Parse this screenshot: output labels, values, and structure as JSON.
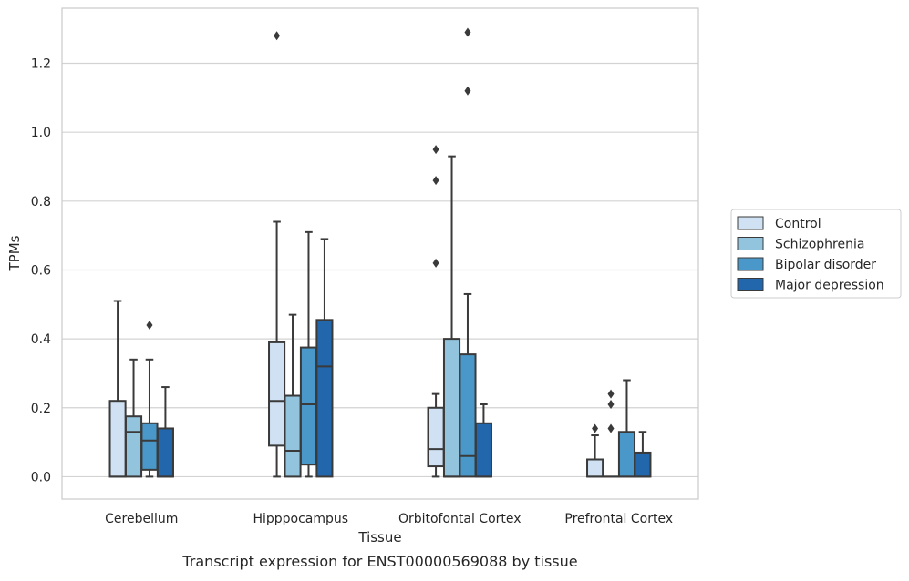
{
  "chart_data": {
    "type": "box",
    "title": "",
    "caption": "Transcript expression for ENST00000569088 by tissue",
    "xlabel": "Tissue",
    "ylabel": "TPMs",
    "ylim": [
      -0.065,
      1.36
    ],
    "yticks": [
      0.0,
      0.2,
      0.4,
      0.6,
      0.8,
      1.0,
      1.2
    ],
    "ytick_labels": [
      "0.0",
      "0.2",
      "0.4",
      "0.6",
      "0.8",
      "1.0",
      "1.2"
    ],
    "grid": "horizontal",
    "legend_position": "right",
    "categories": [
      "Cerebellum",
      "Hipppocampus",
      "Orbitofontal Cortex",
      "Prefrontal Cortex"
    ],
    "series": [
      {
        "name": "Control",
        "color": "#cfe1f2",
        "boxes": [
          {
            "whislo": 0.0,
            "q1": 0.0,
            "med": 0.0,
            "q3": 0.22,
            "whishi": 0.51,
            "fliers": []
          },
          {
            "whislo": 0.0,
            "q1": 0.09,
            "med": 0.22,
            "q3": 0.39,
            "whishi": 0.74,
            "fliers": [
              1.28
            ]
          },
          {
            "whislo": 0.0,
            "q1": 0.03,
            "med": 0.08,
            "q3": 0.2,
            "whishi": 0.24,
            "fliers": [
              0.62,
              0.86,
              0.95
            ]
          },
          {
            "whislo": 0.0,
            "q1": 0.0,
            "med": 0.0,
            "q3": 0.05,
            "whishi": 0.12,
            "fliers": [
              0.14
            ]
          }
        ]
      },
      {
        "name": "Schizophrenia",
        "color": "#93c4de",
        "boxes": [
          {
            "whislo": 0.0,
            "q1": 0.0,
            "med": 0.13,
            "q3": 0.175,
            "whishi": 0.34,
            "fliers": []
          },
          {
            "whislo": 0.0,
            "q1": 0.0,
            "med": 0.075,
            "q3": 0.235,
            "whishi": 0.47,
            "fliers": []
          },
          {
            "whislo": 0.0,
            "q1": 0.0,
            "med": 0.0,
            "q3": 0.4,
            "whishi": 0.93,
            "fliers": []
          },
          {
            "whislo": 0.0,
            "q1": 0.0,
            "med": 0.0,
            "q3": 0.0,
            "whishi": 0.0,
            "fliers": [
              0.14,
              0.21,
              0.24
            ]
          }
        ]
      },
      {
        "name": "Bipolar disorder",
        "color": "#4a98c9",
        "boxes": [
          {
            "whislo": 0.0,
            "q1": 0.02,
            "med": 0.105,
            "q3": 0.155,
            "whishi": 0.34,
            "fliers": [
              0.44
            ]
          },
          {
            "whislo": 0.0,
            "q1": 0.035,
            "med": 0.21,
            "q3": 0.375,
            "whishi": 0.71,
            "fliers": []
          },
          {
            "whislo": 0.0,
            "q1": 0.0,
            "med": 0.06,
            "q3": 0.355,
            "whishi": 0.53,
            "fliers": [
              1.12,
              1.29
            ]
          },
          {
            "whislo": 0.0,
            "q1": 0.0,
            "med": 0.0,
            "q3": 0.13,
            "whishi": 0.28,
            "fliers": []
          }
        ]
      },
      {
        "name": "Major depression",
        "color": "#2266ac",
        "boxes": [
          {
            "whislo": 0.0,
            "q1": 0.0,
            "med": 0.0,
            "q3": 0.14,
            "whishi": 0.26,
            "fliers": []
          },
          {
            "whislo": 0.0,
            "q1": 0.0,
            "med": 0.32,
            "q3": 0.455,
            "whishi": 0.69,
            "fliers": []
          },
          {
            "whislo": 0.0,
            "q1": 0.0,
            "med": 0.0,
            "q3": 0.155,
            "whishi": 0.21,
            "fliers": []
          },
          {
            "whislo": 0.0,
            "q1": 0.0,
            "med": 0.0,
            "q3": 0.07,
            "whishi": 0.13,
            "fliers": []
          }
        ]
      }
    ]
  }
}
